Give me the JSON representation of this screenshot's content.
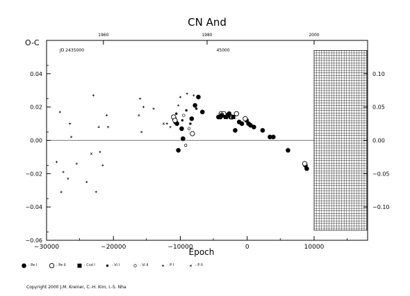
{
  "chart_data": {
    "type": "scatter",
    "title": "CN And",
    "xlabel": "Epoch",
    "ylabel": "O-C",
    "xlim": [
      -30000,
      18000
    ],
    "ylim": [
      -0.06,
      0.06
    ],
    "x_ticks": [
      -30000,
      -20000,
      -10000,
      0,
      10000
    ],
    "x_tick_labels": [
      "−30000",
      "−20000",
      "−10000",
      "0",
      "10000"
    ],
    "y_ticks": [
      -0.06,
      -0.04,
      -0.02,
      0.0,
      0.02,
      0.04
    ],
    "y_tick_labels": [
      "−0.06",
      "−0.04",
      "−0.02",
      "0.00",
      "0.02",
      "0.04"
    ],
    "top_axis": {
      "label": "JD 2435000",
      "mid_label": "45000",
      "ticks": [
        "1960",
        "1980",
        "2000"
      ],
      "tick_epochs": [
        -21500,
        -6000,
        10000
      ]
    },
    "right_axis": {
      "ticks": [
        0.1,
        0.05,
        0.0,
        -0.05,
        -0.1
      ],
      "tick_labels": [
        "0.10",
        "0.05",
        "0.00",
        "−0.05",
        "−0.10"
      ],
      "scale": 0.4
    },
    "zero_line": 0.0,
    "hatched_region": {
      "x": [
        10000,
        18000
      ],
      "y": [
        -0.054,
        0.054
      ]
    },
    "series": [
      {
        "name": ": Pe I",
        "marker": "filled-circle",
        "points": [
          [
            -10900,
            0.013
          ],
          [
            -10700,
            0.011
          ],
          [
            -10500,
            0.01
          ],
          [
            -10300,
            -0.006
          ],
          [
            -9800,
            0.007
          ],
          [
            -9600,
            0.001
          ],
          [
            -8300,
            0.013
          ],
          [
            -7800,
            0.021
          ],
          [
            -7300,
            0.026
          ],
          [
            -6700,
            0.017
          ],
          [
            -4300,
            0.014
          ],
          [
            -4000,
            0.014
          ],
          [
            -3700,
            0.015
          ],
          [
            -3400,
            0.015
          ],
          [
            -3000,
            0.015
          ],
          [
            -2700,
            0.016
          ],
          [
            -2500,
            0.014
          ],
          [
            -1800,
            0.006
          ],
          [
            -1200,
            0.011
          ],
          [
            -800,
            0.01
          ],
          [
            -300,
            0.013
          ],
          [
            -100,
            0.012
          ],
          [
            200,
            0.01
          ],
          [
            500,
            0.009
          ],
          [
            1000,
            0.008
          ],
          [
            2300,
            0.006
          ],
          [
            3400,
            0.002
          ],
          [
            3900,
            0.002
          ],
          [
            6100,
            -0.006
          ],
          [
            8700,
            -0.015
          ],
          [
            8900,
            -0.017
          ]
        ]
      },
      {
        "name": ": Pe II",
        "marker": "open-circle",
        "points": [
          [
            -11000,
            0.014
          ],
          [
            -10800,
            0.012
          ],
          [
            -8200,
            0.004
          ],
          [
            -3900,
            0.016
          ],
          [
            -3500,
            0.016
          ],
          [
            -2300,
            0.014
          ],
          [
            -1600,
            0.016
          ],
          [
            -300,
            0.013
          ],
          [
            8600,
            -0.014
          ]
        ]
      },
      {
        "name": ": Ccd I",
        "marker": "filled-square",
        "points": [
          [
            -3800,
            0.015
          ],
          [
            -3200,
            0.014
          ],
          [
            -2800,
            0.015
          ],
          [
            -2100,
            0.014
          ]
        ]
      },
      {
        "name": ": Vi I",
        "marker": "small-dot",
        "points": [
          [
            -10600,
            0.016
          ],
          [
            -9700,
            0.012
          ],
          [
            -9100,
            0.018
          ],
          [
            -8500,
            0.01
          ],
          [
            -7600,
            0.019
          ]
        ]
      },
      {
        "name": ": Vi II",
        "marker": "small-open-circle",
        "points": [
          [
            -9500,
            0.015
          ],
          [
            -9200,
            -0.003
          ],
          [
            -8700,
            0.007
          ]
        ]
      },
      {
        "name": ": P I",
        "marker": "plus",
        "points": [
          [
            -28500,
            -0.013
          ],
          [
            -27500,
            -0.019
          ],
          [
            -26500,
            0.01
          ],
          [
            -25500,
            -0.014
          ],
          [
            -24000,
            -0.025
          ],
          [
            -23000,
            0.027
          ],
          [
            -22600,
            -0.031
          ],
          [
            -22200,
            0.008
          ],
          [
            -21600,
            -0.015
          ],
          [
            -21000,
            0.015
          ],
          [
            -16000,
            0.025
          ],
          [
            -15500,
            0.02
          ],
          [
            -14000,
            0.019
          ],
          [
            -12000,
            0.01
          ],
          [
            -10000,
            0.026
          ],
          [
            -9000,
            0.028
          ],
          [
            -8000,
            0.027
          ],
          [
            -10300,
            0.021
          ]
        ]
      },
      {
        "name": ": P II",
        "marker": "cross",
        "points": [
          [
            -28000,
            0.017
          ],
          [
            -27800,
            -0.031
          ],
          [
            -26800,
            -0.023
          ],
          [
            -26300,
            0.002
          ],
          [
            -23300,
            -0.008
          ],
          [
            -22000,
            -0.007
          ],
          [
            -20800,
            0.008
          ],
          [
            -16200,
            0.015
          ],
          [
            -15800,
            0.005
          ],
          [
            -11500,
            0.008
          ],
          [
            -12500,
            0.01
          ]
        ]
      }
    ]
  },
  "copyright": "Copyright 2000 J.M. Kreiner, C.-H. Kim, I.-S. Nha"
}
